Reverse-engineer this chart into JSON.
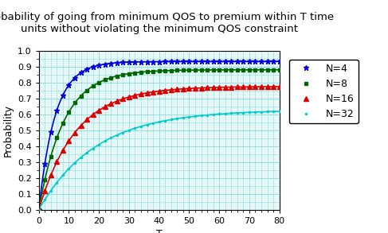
{
  "title": "Probability of going from minimum QOS to premium within T time\nunits without violating the minimum QOS constraint",
  "xlabel": "T",
  "ylabel": "Probability",
  "xlim": [
    0,
    80
  ],
  "ylim": [
    0,
    1.0
  ],
  "series": [
    {
      "label": "N=4",
      "color": "#0000dd",
      "marker": "*",
      "markersize": 5,
      "asymptote": 0.935,
      "rate": 0.185
    },
    {
      "label": "N=8",
      "color": "#006600",
      "marker": "s",
      "markersize": 3.5,
      "asymptote": 0.883,
      "rate": 0.12
    },
    {
      "label": "N=16",
      "color": "#dd0000",
      "marker": "^",
      "markersize": 4,
      "asymptote": 0.778,
      "rate": 0.082
    },
    {
      "label": "N=32",
      "color": "#00cccc",
      "marker": "o",
      "markersize": 1.5,
      "asymptote": 0.63,
      "rate": 0.053
    }
  ],
  "bg_color": "#e6f7f7",
  "grid_color": "#88dddd",
  "title_fontsize": 9.5,
  "axis_label_fontsize": 9,
  "tick_fontsize": 8,
  "legend_fontsize": 9,
  "marker_step": 2
}
